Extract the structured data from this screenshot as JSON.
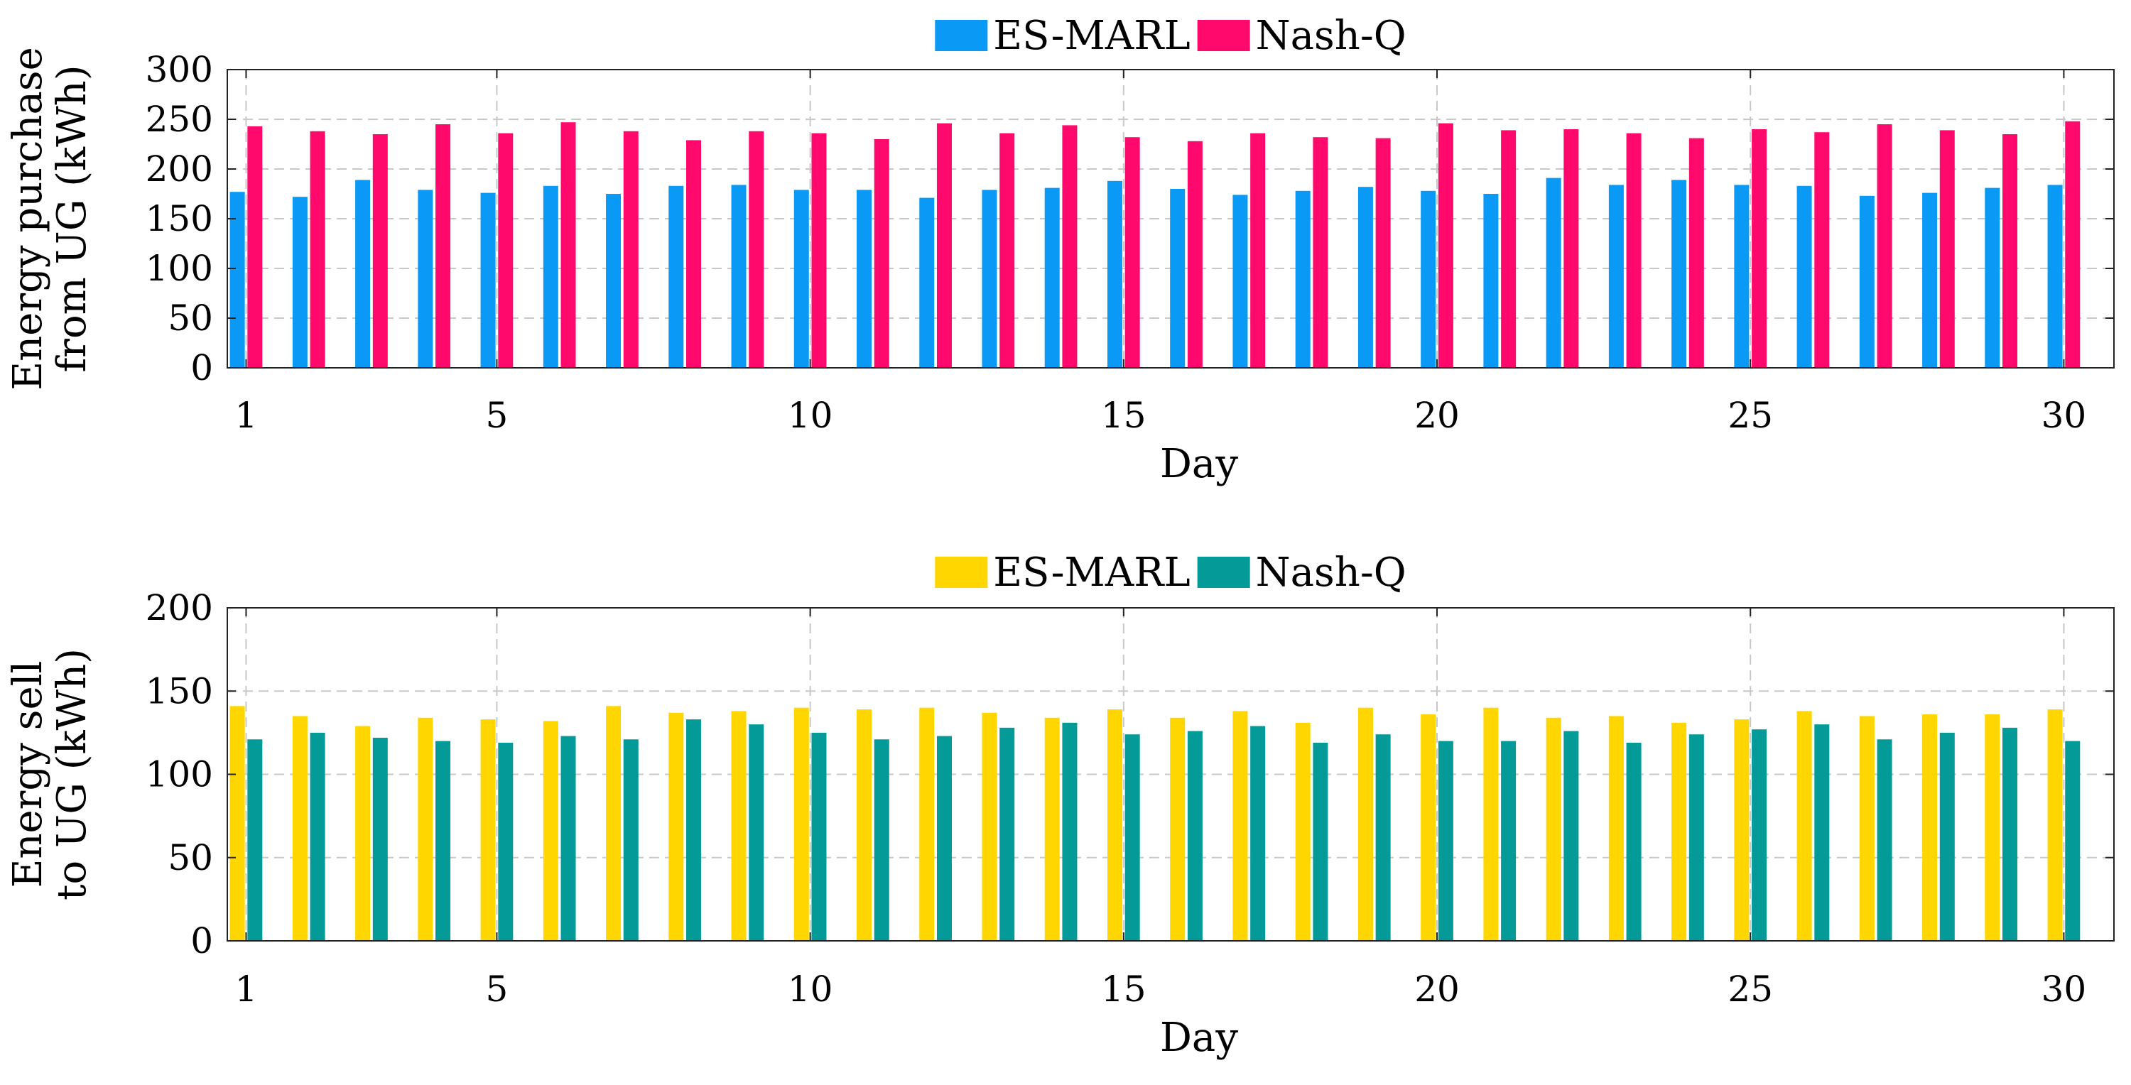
{
  "chart_data": [
    {
      "type": "bar",
      "title": "",
      "xlabel": "Day",
      "ylabel_lines": [
        "Energy purchase",
        "from UG (kWh)"
      ],
      "ylim": [
        0,
        300
      ],
      "yticks": [
        "0",
        "50",
        "100",
        "150",
        "200",
        "250",
        "300"
      ],
      "xticks": [
        "1",
        "5",
        "10",
        "15",
        "20",
        "25",
        "30"
      ],
      "grid": true,
      "legend_position": "top-center",
      "categories": [
        1,
        2,
        3,
        4,
        5,
        6,
        7,
        8,
        9,
        10,
        11,
        12,
        13,
        14,
        15,
        16,
        17,
        18,
        19,
        20,
        21,
        22,
        23,
        24,
        25,
        26,
        27,
        28,
        29,
        30
      ],
      "series": [
        {
          "name": "ES-MARL",
          "color": "#0a99f5",
          "values": [
            177,
            172,
            189,
            179,
            176,
            183,
            175,
            183,
            184,
            179,
            179,
            171,
            179,
            181,
            188,
            180,
            174,
            178,
            182,
            178,
            175,
            191,
            184,
            189,
            184,
            183,
            173,
            176,
            181,
            184
          ]
        },
        {
          "name": "Nash-Q",
          "color": "#ff0a6c",
          "values": [
            243,
            238,
            235,
            245,
            236,
            247,
            238,
            229,
            238,
            236,
            230,
            246,
            236,
            244,
            232,
            228,
            236,
            232,
            231,
            246,
            239,
            240,
            236,
            231,
            240,
            237,
            245,
            239,
            235,
            248
          ]
        }
      ]
    },
    {
      "type": "bar",
      "title": "",
      "xlabel": "Day",
      "ylabel_lines": [
        "Energy sell",
        "to UG (kWh)"
      ],
      "ylim": [
        0,
        200
      ],
      "yticks": [
        "0",
        "50",
        "100",
        "150",
        "200"
      ],
      "xticks": [
        "1",
        "5",
        "10",
        "15",
        "20",
        "25",
        "30"
      ],
      "grid": true,
      "legend_position": "top-center",
      "categories": [
        1,
        2,
        3,
        4,
        5,
        6,
        7,
        8,
        9,
        10,
        11,
        12,
        13,
        14,
        15,
        16,
        17,
        18,
        19,
        20,
        21,
        22,
        23,
        24,
        25,
        26,
        27,
        28,
        29,
        30
      ],
      "series": [
        {
          "name": "ES-MARL",
          "color": "#ffd600",
          "values": [
            141,
            135,
            129,
            134,
            133,
            132,
            141,
            137,
            138,
            140,
            139,
            140,
            137,
            134,
            139,
            134,
            138,
            131,
            140,
            136,
            140,
            134,
            135,
            131,
            133,
            138,
            135,
            136,
            136,
            139
          ]
        },
        {
          "name": "Nash-Q",
          "color": "#039a97",
          "values": [
            121,
            125,
            122,
            120,
            119,
            123,
            121,
            133,
            130,
            125,
            121,
            123,
            128,
            131,
            124,
            126,
            129,
            119,
            124,
            120,
            120,
            126,
            119,
            124,
            127,
            130,
            121,
            125,
            128,
            120
          ]
        }
      ]
    }
  ]
}
